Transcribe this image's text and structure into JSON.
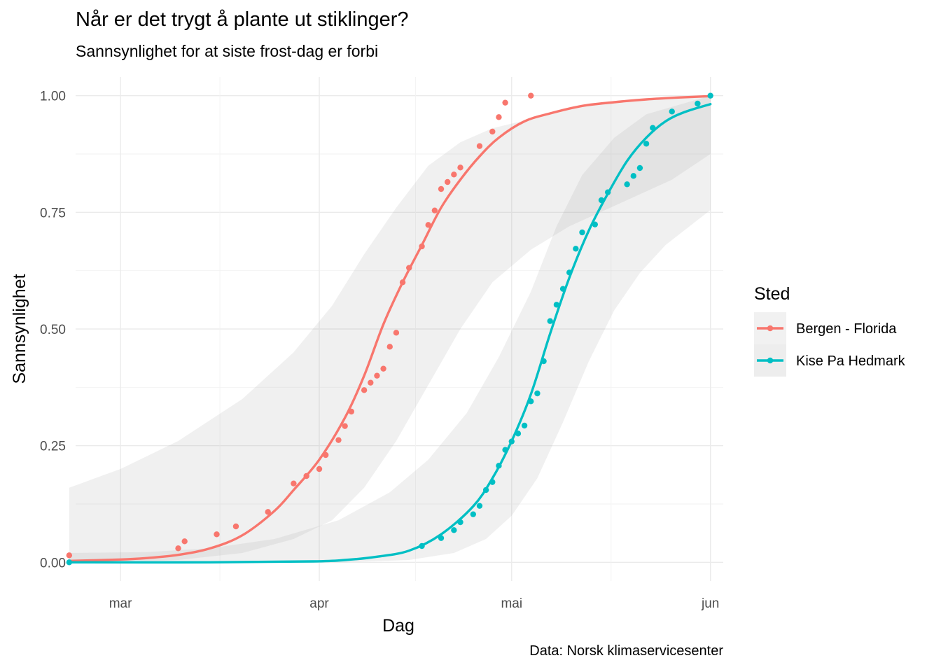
{
  "title": "Når er det trygt å plante ut stiklinger?",
  "subtitle": "Sannsynlighet for at siste frost-dag er forbi",
  "caption": "Data: Norsk klimaservicesenter",
  "chart_data": {
    "type": "scatter",
    "xlabel": "Dag",
    "ylabel": "Sannsynlighet",
    "x_axis": {
      "unit": "day",
      "range": [
        "2000-02-23",
        "2000-06-03"
      ],
      "ticks": [
        {
          "date": "2000-03-01",
          "label": "mar"
        },
        {
          "date": "2000-04-01",
          "label": "apr"
        },
        {
          "date": "2000-05-01",
          "label": "mai"
        },
        {
          "date": "2000-06-01",
          "label": "jun"
        }
      ]
    },
    "y_axis": {
      "range": [
        -0.04,
        1.04
      ],
      "ticks": [
        0,
        0.25,
        0.5,
        0.75,
        1.0
      ],
      "tick_labels": [
        "0.00",
        "0.25",
        "0.50",
        "0.75",
        "1.00"
      ]
    },
    "grid": true,
    "legend": {
      "title": "Sted",
      "placement": "right"
    },
    "series": [
      {
        "name": "Bergen - Florida",
        "color": "#F8766D",
        "points": [
          [
            "2000-02-22",
            0.015
          ],
          [
            "2000-03-10",
            0.03
          ],
          [
            "2000-03-11",
            0.045
          ],
          [
            "2000-03-16",
            0.06
          ],
          [
            "2000-03-19",
            0.077
          ],
          [
            "2000-03-24",
            0.108
          ],
          [
            "2000-03-28",
            0.169
          ],
          [
            "2000-03-30",
            0.185
          ],
          [
            "2000-04-01",
            0.2
          ],
          [
            "2000-04-02",
            0.23
          ],
          [
            "2000-04-04",
            0.262
          ],
          [
            "2000-04-05",
            0.292
          ],
          [
            "2000-04-06",
            0.323
          ],
          [
            "2000-04-08",
            0.369
          ],
          [
            "2000-04-09",
            0.385
          ],
          [
            "2000-04-10",
            0.4
          ],
          [
            "2000-04-11",
            0.415
          ],
          [
            "2000-04-12",
            0.462
          ],
          [
            "2000-04-13",
            0.492
          ],
          [
            "2000-04-14",
            0.6
          ],
          [
            "2000-04-15",
            0.631
          ],
          [
            "2000-04-17",
            0.677
          ],
          [
            "2000-04-18",
            0.723
          ],
          [
            "2000-04-19",
            0.754
          ],
          [
            "2000-04-20",
            0.8
          ],
          [
            "2000-04-21",
            0.815
          ],
          [
            "2000-04-22",
            0.831
          ],
          [
            "2000-04-23",
            0.846
          ],
          [
            "2000-04-26",
            0.892
          ],
          [
            "2000-04-28",
            0.923
          ],
          [
            "2000-04-29",
            0.954
          ],
          [
            "2000-04-30",
            0.985
          ],
          [
            "2000-05-04",
            1.0
          ]
        ],
        "fit": [
          [
            "2000-02-22",
            0.003
          ],
          [
            "2000-03-01",
            0.006
          ],
          [
            "2000-03-05",
            0.009
          ],
          [
            "2000-03-10",
            0.016
          ],
          [
            "2000-03-15",
            0.03
          ],
          [
            "2000-03-20",
            0.058
          ],
          [
            "2000-03-25",
            0.11
          ],
          [
            "2000-03-28",
            0.155
          ],
          [
            "2000-04-01",
            0.22
          ],
          [
            "2000-04-05",
            0.31
          ],
          [
            "2000-04-08",
            0.4
          ],
          [
            "2000-04-11",
            0.51
          ],
          [
            "2000-04-14",
            0.6
          ],
          [
            "2000-04-17",
            0.68
          ],
          [
            "2000-04-20",
            0.76
          ],
          [
            "2000-04-23",
            0.82
          ],
          [
            "2000-04-26",
            0.87
          ],
          [
            "2000-04-29",
            0.91
          ],
          [
            "2000-05-03",
            0.945
          ],
          [
            "2000-05-07",
            0.962
          ],
          [
            "2000-05-12",
            0.978
          ],
          [
            "2000-05-17",
            0.986
          ],
          [
            "2000-05-22",
            0.992
          ],
          [
            "2000-05-27",
            0.996
          ],
          [
            "2000-06-01",
            0.999
          ]
        ],
        "ci_upper": [
          [
            "2000-02-22",
            0.16
          ],
          [
            "2000-03-01",
            0.2
          ],
          [
            "2000-03-10",
            0.26
          ],
          [
            "2000-03-20",
            0.35
          ],
          [
            "2000-03-28",
            0.45
          ],
          [
            "2000-04-03",
            0.55
          ],
          [
            "2000-04-08",
            0.66
          ],
          [
            "2000-04-13",
            0.76
          ],
          [
            "2000-04-18",
            0.85
          ],
          [
            "2000-04-23",
            0.9
          ],
          [
            "2000-04-28",
            0.93
          ],
          [
            "2000-05-04",
            0.95
          ],
          [
            "2000-05-10",
            0.975
          ],
          [
            "2000-05-18",
            0.99
          ],
          [
            "2000-06-01",
            1.0
          ]
        ],
        "ci_lower": [
          [
            "2000-02-22",
            0.0
          ],
          [
            "2000-03-01",
            0.0
          ],
          [
            "2000-03-10",
            0.005
          ],
          [
            "2000-03-20",
            0.02
          ],
          [
            "2000-03-28",
            0.05
          ],
          [
            "2000-04-03",
            0.09
          ],
          [
            "2000-04-08",
            0.16
          ],
          [
            "2000-04-13",
            0.26
          ],
          [
            "2000-04-18",
            0.38
          ],
          [
            "2000-04-23",
            0.5
          ],
          [
            "2000-04-28",
            0.6
          ],
          [
            "2000-05-04",
            0.67
          ],
          [
            "2000-05-10",
            0.72
          ],
          [
            "2000-05-18",
            0.77
          ],
          [
            "2000-05-26",
            0.82
          ],
          [
            "2000-06-01",
            0.875
          ]
        ]
      },
      {
        "name": "Kise Pa Hedmark",
        "color": "#00BFC4",
        "points": [
          [
            "2000-02-22",
            0.0
          ],
          [
            "2000-04-17",
            0.035
          ],
          [
            "2000-04-20",
            0.052
          ],
          [
            "2000-04-22",
            0.069
          ],
          [
            "2000-04-23",
            0.086
          ],
          [
            "2000-04-25",
            0.103
          ],
          [
            "2000-04-26",
            0.121
          ],
          [
            "2000-04-27",
            0.155
          ],
          [
            "2000-04-28",
            0.172
          ],
          [
            "2000-04-29",
            0.207
          ],
          [
            "2000-04-30",
            0.241
          ],
          [
            "2000-05-01",
            0.259
          ],
          [
            "2000-05-02",
            0.276
          ],
          [
            "2000-05-03",
            0.293
          ],
          [
            "2000-05-04",
            0.345
          ],
          [
            "2000-05-05",
            0.362
          ],
          [
            "2000-05-06",
            0.431
          ],
          [
            "2000-05-07",
            0.517
          ],
          [
            "2000-05-08",
            0.552
          ],
          [
            "2000-05-09",
            0.586
          ],
          [
            "2000-05-10",
            0.621
          ],
          [
            "2000-05-11",
            0.672
          ],
          [
            "2000-05-12",
            0.707
          ],
          [
            "2000-05-14",
            0.724
          ],
          [
            "2000-05-15",
            0.776
          ],
          [
            "2000-05-16",
            0.793
          ],
          [
            "2000-05-19",
            0.81
          ],
          [
            "2000-05-20",
            0.828
          ],
          [
            "2000-05-21",
            0.845
          ],
          [
            "2000-05-22",
            0.897
          ],
          [
            "2000-05-23",
            0.931
          ],
          [
            "2000-05-26",
            0.966
          ],
          [
            "2000-05-30",
            0.983
          ],
          [
            "2000-06-01",
            1.0
          ]
        ],
        "fit": [
          [
            "2000-02-22",
            0.0
          ],
          [
            "2000-03-15",
            0.0
          ],
          [
            "2000-03-31",
            0.002
          ],
          [
            "2000-04-05",
            0.005
          ],
          [
            "2000-04-10",
            0.012
          ],
          [
            "2000-04-15",
            0.025
          ],
          [
            "2000-04-20",
            0.06
          ],
          [
            "2000-04-25",
            0.12
          ],
          [
            "2000-04-28",
            0.18
          ],
          [
            "2000-05-01",
            0.26
          ],
          [
            "2000-05-04",
            0.36
          ],
          [
            "2000-05-07",
            0.49
          ],
          [
            "2000-05-10",
            0.61
          ],
          [
            "2000-05-13",
            0.71
          ],
          [
            "2000-05-16",
            0.79
          ],
          [
            "2000-05-19",
            0.86
          ],
          [
            "2000-05-22",
            0.91
          ],
          [
            "2000-05-25",
            0.945
          ],
          [
            "2000-05-28",
            0.965
          ],
          [
            "2000-06-01",
            0.982
          ]
        ],
        "ci_upper": [
          [
            "2000-02-22",
            0.02
          ],
          [
            "2000-03-05",
            0.022
          ],
          [
            "2000-03-15",
            0.03
          ],
          [
            "2000-03-25",
            0.05
          ],
          [
            "2000-04-04",
            0.09
          ],
          [
            "2000-04-12",
            0.15
          ],
          [
            "2000-04-18",
            0.22
          ],
          [
            "2000-04-24",
            0.32
          ],
          [
            "2000-04-29",
            0.44
          ],
          [
            "2000-05-04",
            0.58
          ],
          [
            "2000-05-08",
            0.72
          ],
          [
            "2000-05-12",
            0.83
          ],
          [
            "2000-05-17",
            0.91
          ],
          [
            "2000-05-22",
            0.96
          ],
          [
            "2000-06-01",
            1.0
          ]
        ],
        "ci_lower": [
          [
            "2000-02-22",
            0.0
          ],
          [
            "2000-04-05",
            0.0
          ],
          [
            "2000-04-15",
            0.005
          ],
          [
            "2000-04-22",
            0.02
          ],
          [
            "2000-04-27",
            0.05
          ],
          [
            "2000-05-01",
            0.1
          ],
          [
            "2000-05-05",
            0.18
          ],
          [
            "2000-05-09",
            0.3
          ],
          [
            "2000-05-13",
            0.43
          ],
          [
            "2000-05-17",
            0.54
          ],
          [
            "2000-05-21",
            0.62
          ],
          [
            "2000-05-25",
            0.68
          ],
          [
            "2000-06-01",
            0.755
          ]
        ]
      }
    ]
  }
}
